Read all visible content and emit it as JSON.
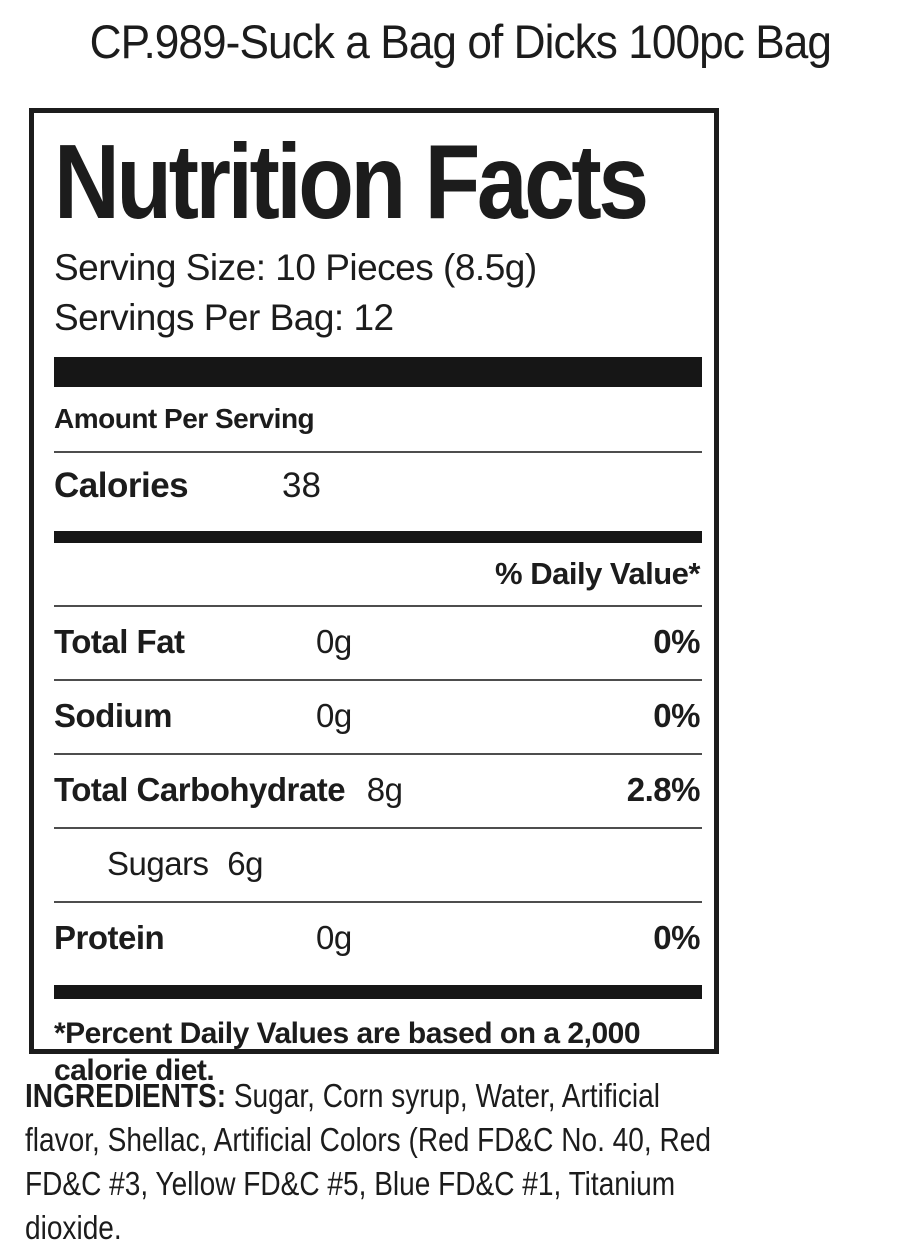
{
  "page": {
    "title": "CP.989-Suck a Bag of Dicks 100pc Bag"
  },
  "label": {
    "title": "Nutrition Facts",
    "serving_size": "Serving Size: 10 Pieces (8.5g)",
    "servings_per_bag": "Servings Per Bag: 12",
    "amount_per_serving": "Amount Per Serving",
    "calories_label": "Calories",
    "calories_value": "38",
    "daily_value_header": "% Daily Value*",
    "rows": [
      {
        "name": "Total Fat",
        "amount": "0g",
        "dv": "0%"
      },
      {
        "name": "Sodium",
        "amount": "0g",
        "dv": "0%"
      },
      {
        "name": "Total Carbohydrate",
        "amount": "8g",
        "dv": "2.8%"
      },
      {
        "name": "Sugars",
        "amount": "6g"
      },
      {
        "name": "Protein",
        "amount": "0g",
        "dv": "0%"
      }
    ],
    "footnote": "*Percent Daily Values are based on a 2,000 calorie diet."
  },
  "ingredients": {
    "label": "INGREDIENTS:",
    "text": " Sugar, Corn syrup, Water, Artificial flavor, Shellac, Artificial Colors (Red FD&C No. 40, Red FD&C #3, Yellow FD&C #5, Blue FD&C #1, Titanium dioxide."
  },
  "colors": {
    "text": "#1c1c1c",
    "bar": "#161616",
    "rule": "#4d4d4d",
    "bg": "#ffffff"
  }
}
